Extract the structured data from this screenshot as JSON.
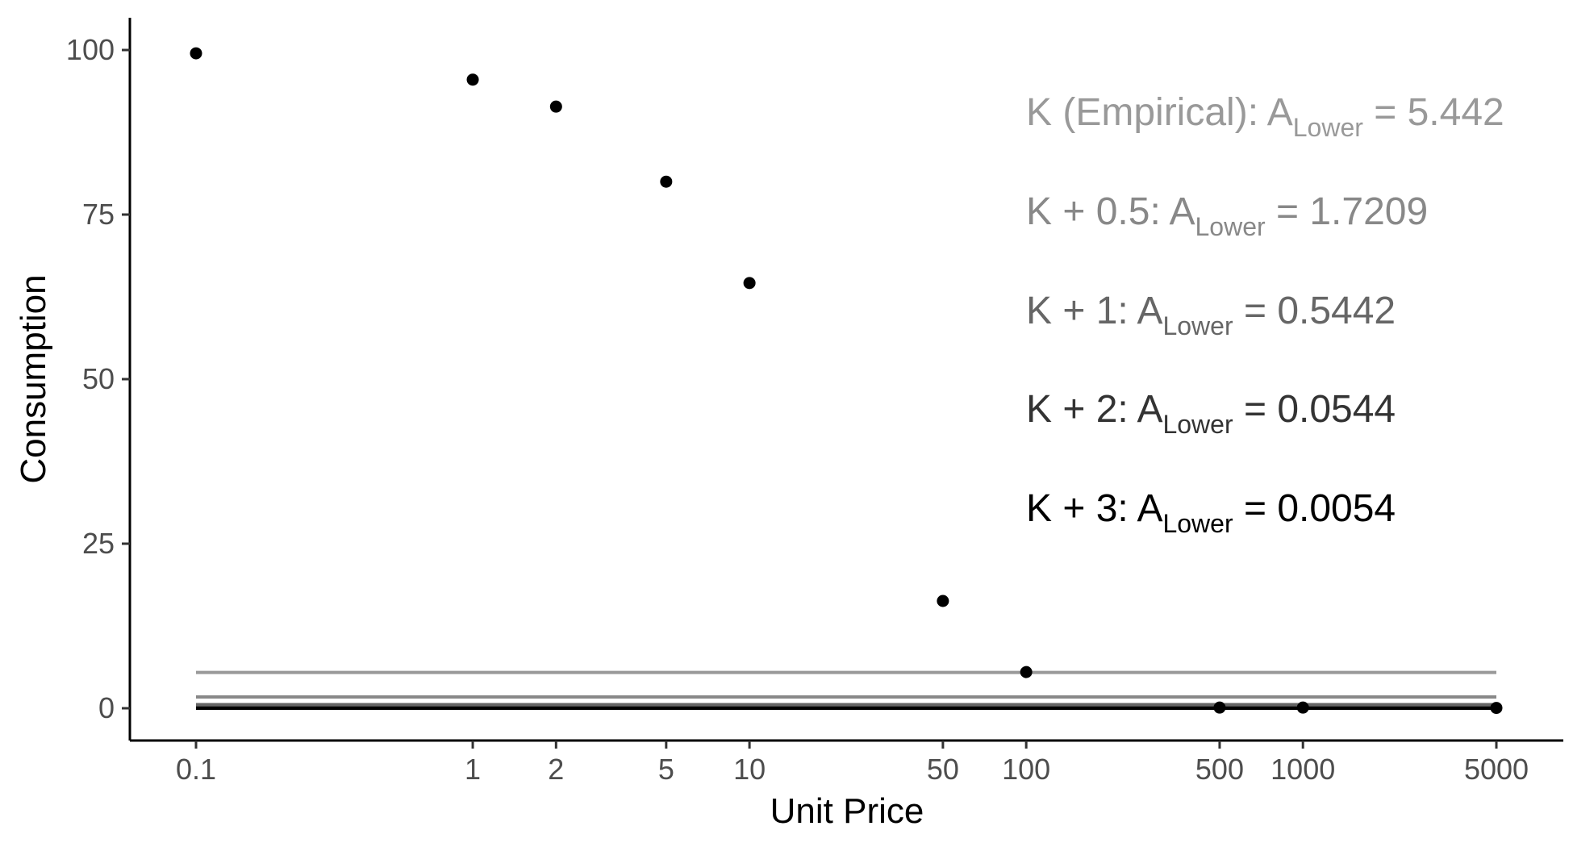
{
  "chart_data": {
    "type": "scatter",
    "xlabel": "Unit Price",
    "ylabel": "Consumption",
    "x_scale": "log",
    "xlim": [
      0.1,
      5000
    ],
    "ylim": [
      0,
      100
    ],
    "grid": false,
    "x_ticks": [
      0.1,
      1,
      2,
      5,
      10,
      50,
      100,
      500,
      1000,
      5000
    ],
    "x_tick_labels": [
      "0.1",
      "1",
      "2",
      "5",
      "10",
      "50",
      "100",
      "500",
      "1000",
      "5000"
    ],
    "y_ticks": [
      0,
      25,
      50,
      75,
      100
    ],
    "y_tick_labels": [
      "0",
      "25",
      "50",
      "75",
      "100"
    ],
    "points": [
      {
        "x": 0.1,
        "y": 99.5
      },
      {
        "x": 1,
        "y": 95.5
      },
      {
        "x": 2,
        "y": 91.4
      },
      {
        "x": 5,
        "y": 80.0
      },
      {
        "x": 10,
        "y": 64.6
      },
      {
        "x": 50,
        "y": 16.3
      },
      {
        "x": 100,
        "y": 5.5
      },
      {
        "x": 500,
        "y": 0.1
      },
      {
        "x": 1000,
        "y": 0.1
      },
      {
        "x": 5000,
        "y": 0.05
      }
    ],
    "reference_lines": [
      {
        "y": 5.442,
        "color": "#999999"
      },
      {
        "y": 1.7209,
        "color": "#888888"
      },
      {
        "y": 0.5442,
        "color": "#666666"
      },
      {
        "y": 0.0544,
        "color": "#333333"
      },
      {
        "y": 0.0054,
        "color": "#000000"
      }
    ],
    "annotations": [
      {
        "prefix": "K (Empirical):  ",
        "base": "A",
        "sub": "Lower",
        "eq": " = ",
        "value": "5.442",
        "color": "#999999"
      },
      {
        "prefix": "K + 0.5:  ",
        "base": "A",
        "sub": "Lower",
        "eq": " = ",
        "value": "1.7209",
        "color": "#888888"
      },
      {
        "prefix": "K + 1:  ",
        "base": "A",
        "sub": "Lower",
        "eq": " = ",
        "value": "0.5442",
        "color": "#666666"
      },
      {
        "prefix": "K + 2:  ",
        "base": "A",
        "sub": "Lower",
        "eq": " = ",
        "value": "0.0544",
        "color": "#333333"
      },
      {
        "prefix": "K + 3:  ",
        "base": "A",
        "sub": "Lower",
        "eq": " = ",
        "value": "0.0054",
        "color": "#000000"
      }
    ]
  }
}
